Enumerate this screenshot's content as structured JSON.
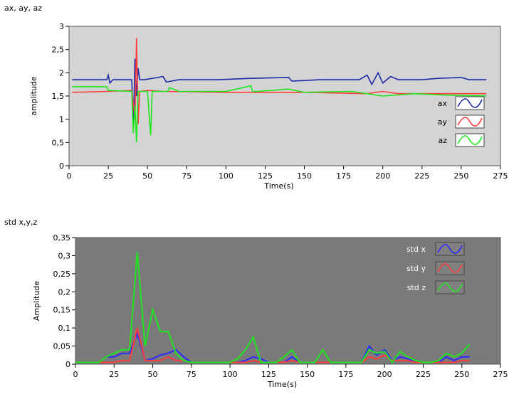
{
  "chart_data": [
    {
      "type": "line",
      "title": "ax, ay, az",
      "xlabel": "Time(s)",
      "ylabel": "amplitude",
      "xlim": [
        0,
        275
      ],
      "ylim": [
        0,
        3
      ],
      "x_ticks": [
        "0",
        "25",
        "50",
        "75",
        "100",
        "125",
        "150",
        "175",
        "200",
        "225",
        "250",
        "275"
      ],
      "y_ticks": [
        "0",
        "0,5",
        "1",
        "1,5",
        "2",
        "2,5",
        "3"
      ],
      "grid": false,
      "legend_position": "right",
      "plot_bg": "#d4d4d4",
      "series": [
        {
          "name": "ax",
          "color": "#1c2aa8",
          "x": [
            2,
            24,
            25,
            26,
            28,
            40,
            41,
            42,
            43,
            44,
            45,
            48,
            60,
            62,
            70,
            95,
            115,
            140,
            142,
            160,
            185,
            190,
            193,
            197,
            200,
            205,
            210,
            225,
            235,
            250,
            255,
            266
          ],
          "y": [
            1.85,
            1.85,
            1.95,
            1.78,
            1.85,
            1.85,
            0.8,
            2.3,
            1.5,
            2.1,
            1.85,
            1.85,
            1.92,
            1.8,
            1.85,
            1.85,
            1.88,
            1.9,
            1.82,
            1.85,
            1.85,
            1.95,
            1.75,
            2.0,
            1.78,
            1.92,
            1.85,
            1.85,
            1.88,
            1.9,
            1.85,
            1.85
          ]
        },
        {
          "name": "ay",
          "color": "#ff3c3c",
          "x": [
            2,
            25,
            40,
            42,
            43,
            44,
            45,
            50,
            60,
            100,
            150,
            190,
            200,
            210,
            266
          ],
          "y": [
            1.58,
            1.6,
            1.62,
            1.0,
            2.75,
            0.9,
            1.6,
            1.62,
            1.6,
            1.58,
            1.58,
            1.55,
            1.6,
            1.55,
            1.55
          ]
        },
        {
          "name": "az",
          "color": "#1ee61e",
          "x": [
            2,
            24,
            25,
            40,
            41,
            42,
            43,
            44,
            46,
            50,
            52,
            53,
            55,
            63,
            64,
            70,
            100,
            116,
            117,
            120,
            140,
            150,
            180,
            200,
            220,
            240,
            266
          ],
          "y": [
            1.7,
            1.7,
            1.62,
            1.6,
            0.7,
            1.3,
            0.5,
            1.6,
            1.6,
            1.6,
            0.65,
            1.6,
            1.6,
            1.6,
            1.68,
            1.6,
            1.6,
            1.72,
            1.6,
            1.6,
            1.65,
            1.58,
            1.6,
            1.5,
            1.55,
            1.52,
            1.5
          ]
        }
      ]
    },
    {
      "type": "line",
      "title": "std x,y,z",
      "xlabel": "Time(s)",
      "ylabel": "Amplitude",
      "xlim": [
        0,
        275
      ],
      "ylim": [
        0,
        0.35
      ],
      "x_ticks": [
        "0",
        "25",
        "50",
        "75",
        "100",
        "125",
        "150",
        "175",
        "200",
        "225",
        "250",
        "275"
      ],
      "y_ticks": [
        "0",
        "0,05",
        "0,1",
        "0,15",
        "0,2",
        "0,25",
        "0,3",
        "0,35"
      ],
      "grid": false,
      "legend_position": "top-right",
      "plot_bg": "#7a7a7a",
      "series": [
        {
          "name": "std x",
          "color": "#2a2aff",
          "x": [
            0,
            15,
            20,
            25,
            30,
            35,
            40,
            45,
            50,
            55,
            60,
            65,
            70,
            75,
            80,
            85,
            90,
            95,
            100,
            105,
            110,
            115,
            120,
            125,
            130,
            135,
            140,
            145,
            150,
            155,
            160,
            165,
            170,
            175,
            180,
            185,
            190,
            195,
            200,
            205,
            210,
            215,
            220,
            225,
            230,
            235,
            240,
            245,
            250,
            255
          ],
          "y": [
            0.005,
            0.005,
            0.02,
            0.02,
            0.03,
            0.03,
            0.085,
            0.01,
            0.015,
            0.025,
            0.03,
            0.04,
            0.02,
            0.005,
            0.005,
            0.005,
            0.005,
            0.005,
            0.005,
            0.005,
            0.01,
            0.02,
            0.015,
            0.005,
            0.005,
            0.005,
            0.02,
            0.005,
            0.005,
            0.005,
            0.005,
            0.005,
            0.005,
            0.005,
            0.005,
            0.005,
            0.05,
            0.025,
            0.04,
            0.01,
            0.02,
            0.015,
            0.005,
            0.005,
            0.005,
            0.005,
            0.02,
            0.01,
            0.02,
            0.02
          ]
        },
        {
          "name": "std y",
          "color": "#ff3c3c",
          "x": [
            0,
            15,
            20,
            25,
            30,
            35,
            40,
            45,
            50,
            55,
            60,
            65,
            70,
            75,
            80,
            85,
            90,
            95,
            100,
            105,
            110,
            115,
            120,
            125,
            130,
            135,
            140,
            145,
            150,
            155,
            160,
            165,
            170,
            175,
            180,
            185,
            190,
            195,
            200,
            205,
            210,
            215,
            220,
            225,
            230,
            235,
            240,
            245,
            250,
            255
          ],
          "y": [
            0.005,
            0.005,
            0.005,
            0.005,
            0.01,
            0.01,
            0.1,
            0.01,
            0.01,
            0.01,
            0.02,
            0.01,
            0.01,
            0.005,
            0.005,
            0.005,
            0.005,
            0.005,
            0.005,
            0.005,
            0.005,
            0.01,
            0.005,
            0.005,
            0.005,
            0.005,
            0.01,
            0.005,
            0.005,
            0.005,
            0.005,
            0.005,
            0.005,
            0.005,
            0.005,
            0.005,
            0.02,
            0.015,
            0.025,
            0.01,
            0.01,
            0.01,
            0.005,
            0.005,
            0.005,
            0.005,
            0.005,
            0.005,
            0.01,
            0.01
          ]
        },
        {
          "name": "std  z",
          "color": "#1ee61e",
          "x": [
            0,
            15,
            20,
            25,
            30,
            35,
            40,
            45,
            50,
            55,
            60,
            65,
            70,
            75,
            80,
            85,
            90,
            95,
            100,
            105,
            110,
            115,
            120,
            125,
            130,
            135,
            140,
            145,
            150,
            155,
            160,
            165,
            170,
            175,
            180,
            185,
            190,
            195,
            200,
            205,
            210,
            215,
            220,
            225,
            230,
            235,
            240,
            245,
            250,
            255
          ],
          "y": [
            0.005,
            0.005,
            0.02,
            0.03,
            0.04,
            0.04,
            0.31,
            0.05,
            0.15,
            0.09,
            0.09,
            0.03,
            0.01,
            0.005,
            0.005,
            0.005,
            0.005,
            0.005,
            0.005,
            0.015,
            0.04,
            0.075,
            0.005,
            0.005,
            0.005,
            0.02,
            0.04,
            0.005,
            0.005,
            0.005,
            0.04,
            0.005,
            0.005,
            0.005,
            0.005,
            0.005,
            0.04,
            0.03,
            0.035,
            0.005,
            0.035,
            0.02,
            0.01,
            0.005,
            0.005,
            0.01,
            0.03,
            0.02,
            0.03,
            0.055
          ]
        }
      ]
    }
  ]
}
